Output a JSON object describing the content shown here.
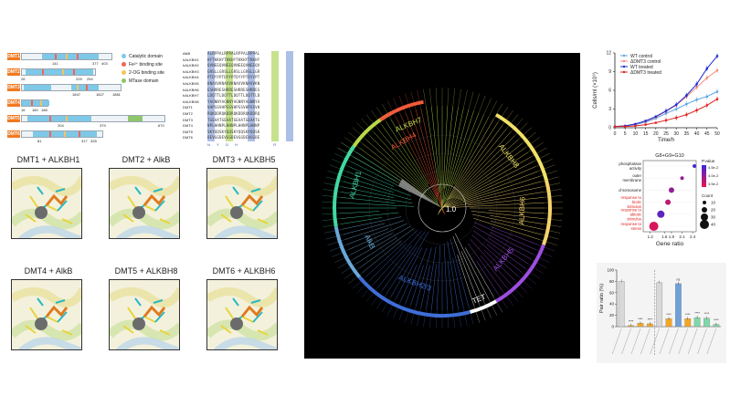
{
  "domains": {
    "rows": [
      {
        "tag": "DMT1",
        "labels": [
          "141",
          "377",
          "403"
        ]
      },
      {
        "tag": "DMT2",
        "labels": [
          "26",
          "225",
          "254"
        ]
      },
      {
        "tag": "DMT3",
        "labels": [
          "1647",
          "1827",
          "1881"
        ]
      },
      {
        "tag": "DMT4",
        "labels": [
          "16",
          "160",
          "188"
        ]
      },
      {
        "tag": "DMT5",
        "labels": [
          "204",
          "379",
          "670"
        ]
      },
      {
        "tag": "DMT6",
        "labels": [
          "81",
          "317",
          "328"
        ]
      }
    ],
    "legend": [
      {
        "label": "Catalytic domain",
        "color": "#7ec8e8"
      },
      {
        "label": "Fe²⁺ binding site",
        "color": "#f2645a"
      },
      {
        "label": "2-OG binding site",
        "color": "#f3c660"
      },
      {
        "label": "MTase domain",
        "color": "#8fc66b"
      }
    ]
  },
  "alignment": {
    "names": [
      "AlkB",
      "hALKBH1",
      "hALKBH2",
      "hALKBH3",
      "hALKBH4",
      "hALKBH5",
      "hALKBH6",
      "hALKBH7",
      "hALKBH8",
      "DMT1",
      "DMT2",
      "DMT3",
      "DMT4",
      "DMT5",
      "DMT6"
    ],
    "bottom_letters": "N   Y   D   H                  R"
  },
  "structures": [
    {
      "title": "DMT1 + ALKBH1"
    },
    {
      "title": "DMT2 + AlkB"
    },
    {
      "title": "DMT3 + ALKBH5"
    },
    {
      "title": "DMT4 + AlkB"
    },
    {
      "title": "DMT5 + ALKBH8"
    },
    {
      "title": "DMT6 + ALKBH6"
    }
  ],
  "tree": {
    "scale": "1.0",
    "clades": [
      {
        "label": "ALKBH7",
        "color": "#b8d94a"
      },
      {
        "label": "ALKBH4",
        "color": "#f25a3a"
      },
      {
        "label": "ALKBH8",
        "color": "#f0e268"
      },
      {
        "label": "ALKBH6",
        "color": "#f5d36c"
      },
      {
        "label": "ALKBH5",
        "color": "#9d4ee0"
      },
      {
        "label": "TET",
        "color": "#ffffff"
      },
      {
        "label": "ALKBH2/3",
        "color": "#3f6ed8"
      },
      {
        "label": "AlkB",
        "color": "#6aa8d8"
      },
      {
        "label": "ALKBH1",
        "color": "#41d9a2"
      }
    ]
  },
  "chart_data": [
    {
      "type": "line",
      "xlabel": "Time/h",
      "ylabel": "Cells/ml (×10⁶)",
      "x": [
        0,
        5,
        10,
        15,
        20,
        25,
        30,
        35,
        40,
        45,
        50
      ],
      "xlim": [
        0,
        50
      ],
      "ylim": [
        0,
        12
      ],
      "series": [
        {
          "name": "WT control",
          "color": "#5aa5e6",
          "values": [
            0.2,
            0.3,
            0.5,
            0.9,
            1.5,
            2.3,
            3.0,
            3.8,
            4.5,
            5.0,
            5.8
          ]
        },
        {
          "name": "ΔDMT3 control",
          "color": "#f28b78",
          "values": [
            0.2,
            0.3,
            0.6,
            1.0,
            1.7,
            2.6,
            3.6,
            5.0,
            6.5,
            8.0,
            9.2
          ]
        },
        {
          "name": "WT treated",
          "color": "#1f2bd6",
          "values": [
            0.2,
            0.3,
            0.6,
            1.1,
            1.8,
            2.7,
            3.7,
            5.2,
            7.0,
            9.5,
            11.5
          ]
        },
        {
          "name": "ΔDMT3 treated",
          "color": "#e02020",
          "values": [
            0.2,
            0.2,
            0.3,
            0.5,
            0.8,
            1.2,
            1.6,
            2.1,
            2.8,
            3.6,
            4.6
          ]
        }
      ]
    },
    {
      "type": "scatter",
      "title": "G8+G9+G10",
      "xlabel": "Gene ratio",
      "categories": [
        "phosphatase activity",
        "outer membrane",
        "chromosome",
        "response to biotic stimulus",
        "response to abiotic stimulus",
        "response to stress"
      ],
      "highlight_color": "#e02020",
      "x_ticks": [
        "1.2",
        "1.6",
        "1.8",
        "2.1",
        "2.4"
      ],
      "xlim": [
        1.0,
        2.5
      ],
      "points": [
        {
          "category": "phosphatase activity",
          "x": 2.45,
          "count": 10,
          "p": 0.00049
        },
        {
          "category": "outer membrane",
          "x": 2.1,
          "count": 10,
          "p": 0.0004
        },
        {
          "category": "chromosome",
          "x": 1.8,
          "count": 20,
          "p": 0.0004
        },
        {
          "category": "response to biotic stimulus",
          "x": 1.7,
          "count": 20,
          "p": 0.00035
        },
        {
          "category": "response to abiotic stimulus",
          "x": 1.5,
          "count": 30,
          "p": 0.00046
        },
        {
          "category": "response to stress",
          "x": 1.3,
          "count": 40,
          "p": 0.00032
        }
      ],
      "legend_p": {
        "title": "P.value",
        "ticks": [
          "4.5e-2",
          "4.0e-2",
          "3.5e-2"
        ]
      },
      "legend_count": {
        "title": "Count",
        "values": [
          10,
          20,
          30,
          40
        ]
      }
    },
    {
      "type": "bar",
      "ylabel": "Pair ratio (%)",
      "ylim": [
        0,
        100
      ],
      "yticks": [
        "0",
        "20",
        "40",
        "60",
        "80",
        "100"
      ],
      "categories": [
        "",
        "",
        "",
        "",
        "",
        "",
        "",
        "",
        "",
        "",
        ""
      ],
      "values": [
        80,
        2,
        6,
        5,
        78,
        14,
        76,
        14,
        16,
        15,
        4
      ],
      "colors": [
        "#d8d8d8",
        "#f5a623",
        "#f5a623",
        "#f5a623",
        "#d8d8d8",
        "#f5a623",
        "#6fa0d8",
        "#f5a623",
        "#7fd8a8",
        "#7fd8a8",
        "#7fd8a8"
      ],
      "stars": [
        "",
        "****",
        "****",
        "****",
        "",
        "****",
        "ns",
        "****",
        "****",
        "****",
        "****"
      ]
    }
  ]
}
